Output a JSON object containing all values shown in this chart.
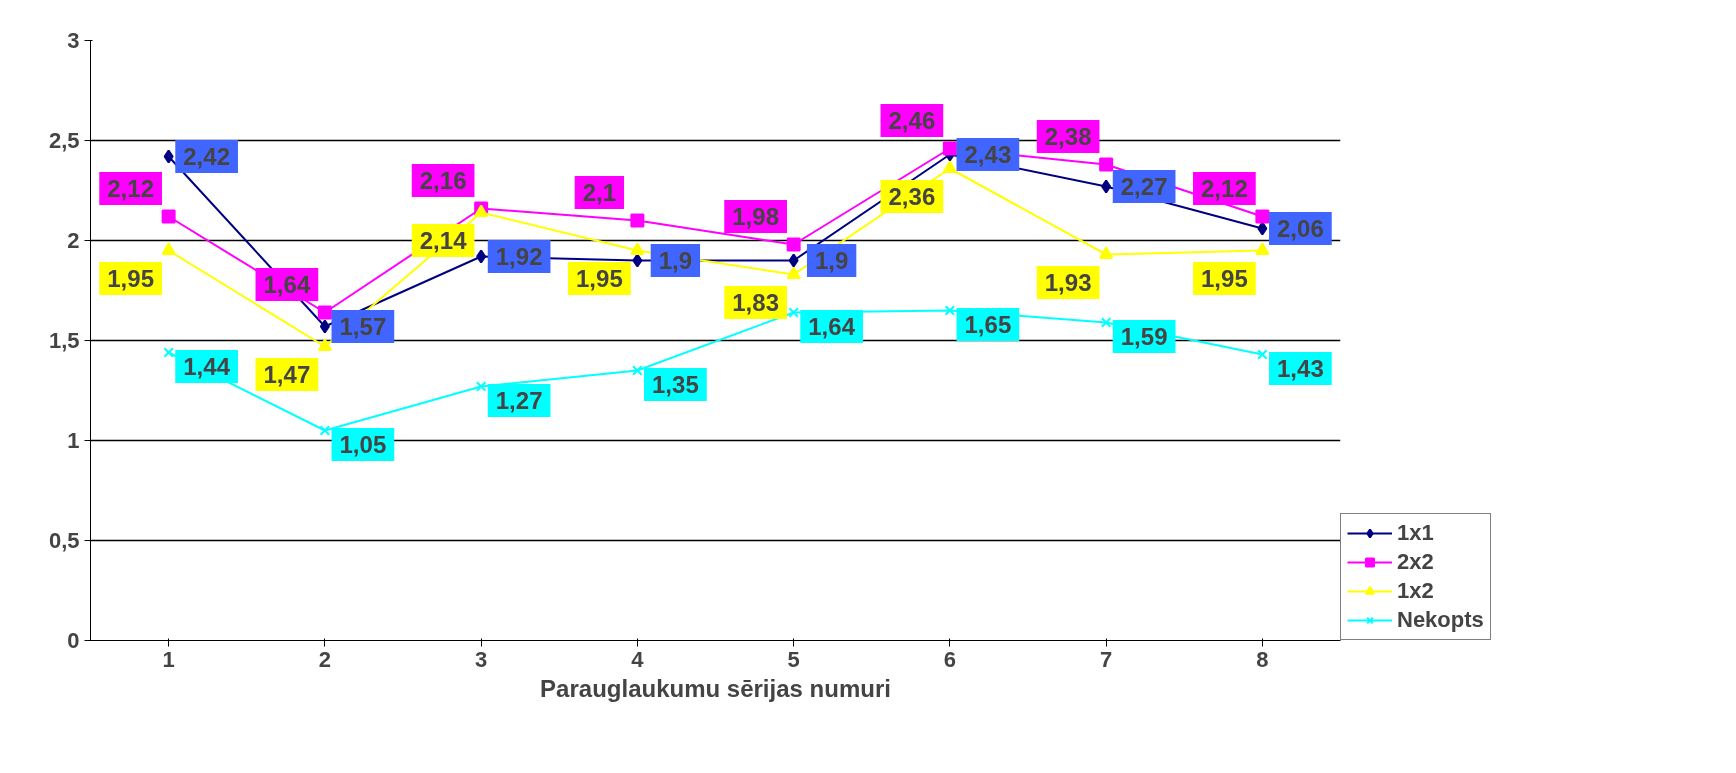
{
  "chart_data": {
    "type": "line",
    "xlabel": "Parauglaukumu sērijas numuri",
    "categories": [
      "1",
      "2",
      "3",
      "4",
      "5",
      "6",
      "7",
      "8"
    ],
    "ylim": [
      0,
      3
    ],
    "yticks": [
      0,
      {
        "value": 0.5,
        "label": "0,5"
      },
      1,
      {
        "value": 1.5,
        "label": "1,5"
      },
      2,
      {
        "value": 2.5,
        "label": "2,5"
      },
      3
    ],
    "grid": "y",
    "legend": "right",
    "series": [
      {
        "name": "1x1",
        "color": "#000080",
        "marker": "diamond",
        "values": [
          2.42,
          1.57,
          1.92,
          1.9,
          1.9,
          2.43,
          2.27,
          2.06
        ],
        "value_labels": [
          "2,42",
          "1,57",
          "1,92",
          "1,9",
          "1,9",
          "2,43",
          "2,27",
          "2,06"
        ]
      },
      {
        "name": "2x2",
        "color": "#ff00ff",
        "marker": "square",
        "values": [
          2.12,
          1.64,
          2.16,
          2.1,
          1.98,
          2.46,
          2.38,
          2.12
        ],
        "value_labels": [
          "2,12",
          "1,64",
          "2,16",
          "2,1",
          "1,98",
          "2,46",
          "2,38",
          "2,12"
        ]
      },
      {
        "name": "1x2",
        "color": "#ffff00",
        "marker": "triangle",
        "values": [
          1.95,
          1.47,
          2.14,
          1.95,
          1.83,
          2.36,
          1.93,
          1.95
        ],
        "value_labels": [
          "1,95",
          "1,47",
          "2,14",
          "1,95",
          "1,83",
          "2,36",
          "1,93",
          "1,95"
        ]
      },
      {
        "name": "Nekopts",
        "color": "#00ffff",
        "marker": "cross",
        "values": [
          1.44,
          1.05,
          1.27,
          1.35,
          1.64,
          1.65,
          1.59,
          1.43
        ],
        "value_labels": [
          "1,44",
          "1,05",
          "1,27",
          "1,35",
          "1,64",
          "1,65",
          "1,59",
          "1,43"
        ]
      }
    ]
  }
}
